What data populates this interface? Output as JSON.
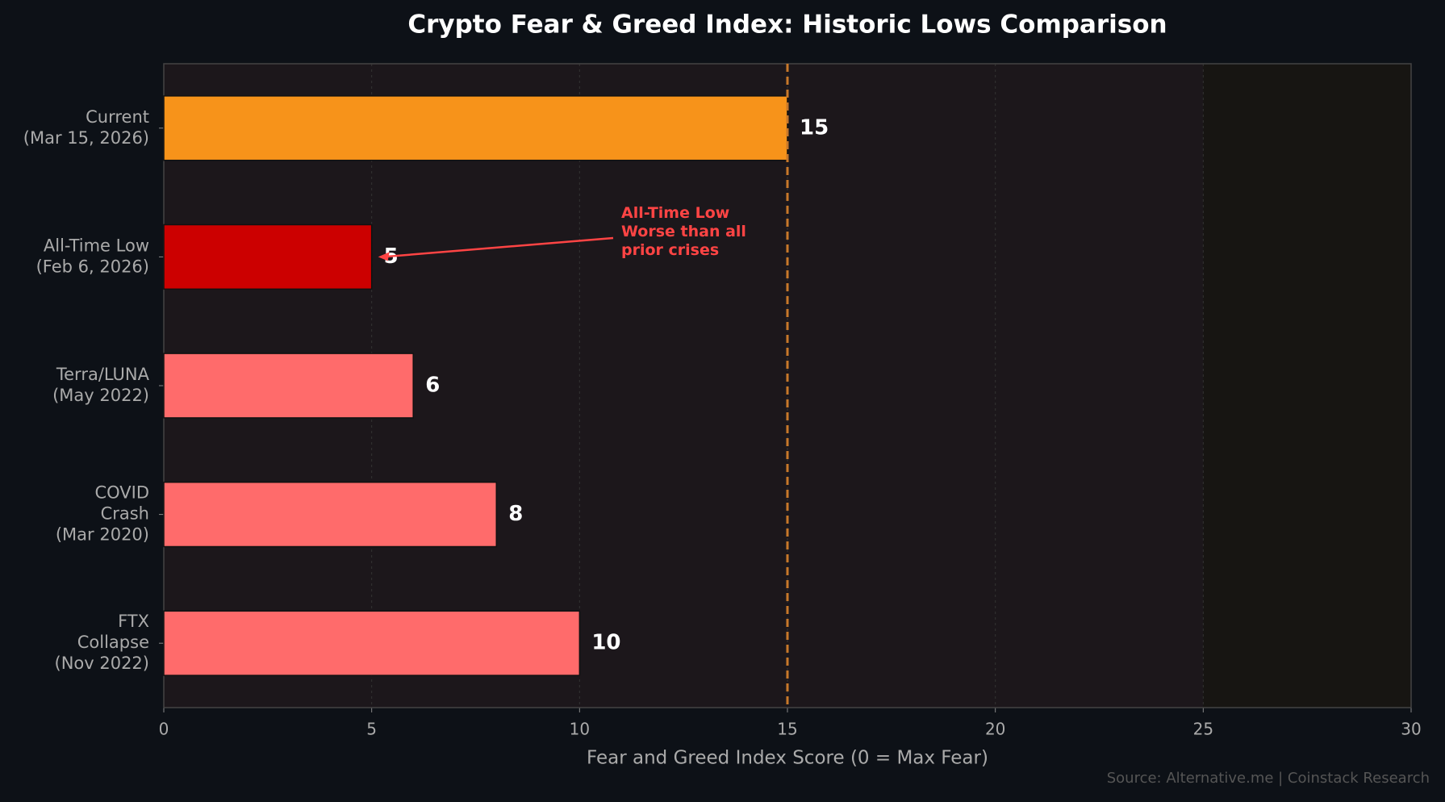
{
  "chart_data": {
    "type": "barh",
    "title": "Crypto Fear & Greed Index: Historic Lows Comparison",
    "xlabel": "Fear and Greed Index Score (0 = Max Fear)",
    "source": "Source: Alternative.me | Coinstack Research",
    "categories": [
      "Current\n(Mar 15, 2026)",
      "All-Time Low\n(Feb 6, 2026)",
      "Terra/LUNA\n(May 2022)",
      "COVID\nCrash\n(Mar 2020)",
      "FTX\nCollapse\n(Nov 2022)"
    ],
    "values": [
      15,
      5,
      6,
      8,
      10
    ],
    "colors": [
      "#f7931a",
      "#cc0000",
      "#ff6b6b",
      "#ff6b6b",
      "#ff6b6b"
    ],
    "xlim": [
      0,
      30
    ],
    "xticks": [
      0,
      5,
      10,
      15,
      20,
      25,
      30
    ],
    "grid": true,
    "reference_line": {
      "value": 15,
      "color": "#c8782a"
    },
    "shaded_region": [
      25,
      30
    ],
    "annotation": {
      "text": "All-Time Low\nWorse than all\nprior crises",
      "color": "#ff4444"
    }
  }
}
